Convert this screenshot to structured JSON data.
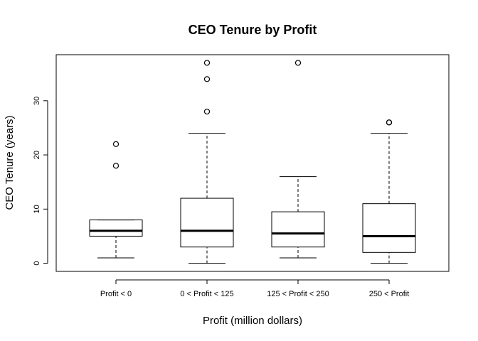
{
  "chart_data": {
    "type": "boxplot",
    "title": "CEO Tenure by Profit",
    "xlabel": "Profit (million dollars)",
    "ylabel": "CEO Tenure (years)",
    "ylim": [
      -1.5,
      38.5
    ],
    "yticks": [
      0,
      10,
      20,
      30
    ],
    "grid": false,
    "categories": [
      "Profit < 0",
      "0 < Profit < 125",
      "125 < Profit < 250",
      "250 < Profit"
    ],
    "boxes": [
      {
        "category": "Profit < 0",
        "whisker_low": 1,
        "q1": 5,
        "median": 6,
        "q3": 8,
        "whisker_high": 8,
        "outliers": [
          18,
          22
        ]
      },
      {
        "category": "0 < Profit < 125",
        "whisker_low": 0,
        "q1": 3,
        "median": 6,
        "q3": 12,
        "whisker_high": 24,
        "outliers": [
          28,
          34,
          37
        ]
      },
      {
        "category": "125 < Profit < 250",
        "whisker_low": 1,
        "q1": 3,
        "median": 5.5,
        "q3": 9.5,
        "whisker_high": 16,
        "outliers": [
          37
        ]
      },
      {
        "category": "250 < Profit",
        "whisker_low": 0,
        "q1": 2,
        "median": 5,
        "q3": 11,
        "whisker_high": 24,
        "outliers": [
          26,
          26
        ]
      }
    ]
  }
}
